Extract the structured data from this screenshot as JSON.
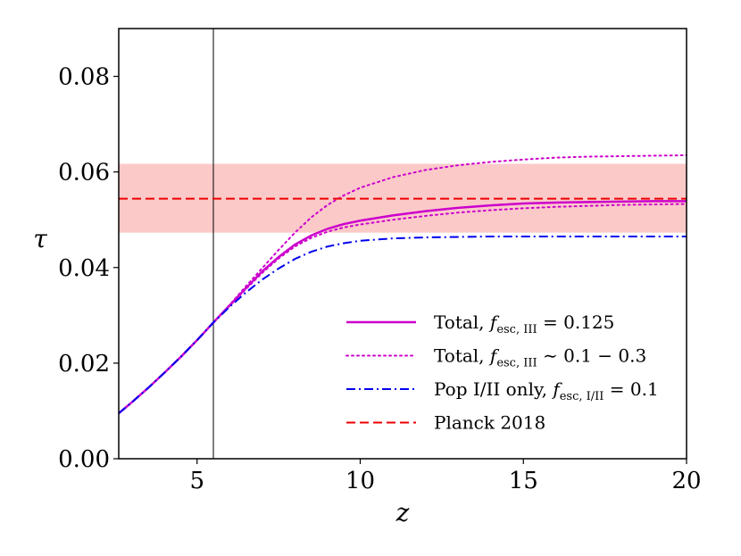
{
  "chart_data": {
    "type": "line",
    "title": "",
    "xlabel": "z",
    "ylabel": "τ",
    "xlim": [
      2.6,
      20
    ],
    "ylim": [
      0.0,
      0.09
    ],
    "xticks": [
      5,
      10,
      15,
      20
    ],
    "xtick_labels": [
      "5",
      "10",
      "15",
      "20"
    ],
    "yticks": [
      0.0,
      0.02,
      0.04,
      0.06,
      0.08
    ],
    "ytick_labels": [
      "0.00",
      "0.02",
      "0.04",
      "0.06",
      "0.08"
    ],
    "vline_x": 5.5,
    "grid": false,
    "legend_position": "lower-right",
    "band": {
      "name": "Planck 2018 1σ range",
      "y_low": 0.0473,
      "y_high": 0.0617,
      "color": "#fcc9c9"
    },
    "series": [
      {
        "name": "Total, f_esc,III = 0.125",
        "style": "solid",
        "color": "#cc00cc",
        "x": [
          2.6,
          3,
          3.5,
          4,
          4.5,
          5,
          5.5,
          6,
          6.5,
          7,
          7.5,
          8,
          8.5,
          9,
          9.5,
          10,
          11,
          12,
          13,
          14,
          15,
          16,
          17,
          18,
          19,
          20
        ],
        "y": [
          0.0095,
          0.0118,
          0.0148,
          0.018,
          0.0213,
          0.0248,
          0.0285,
          0.0321,
          0.0357,
          0.0392,
          0.0422,
          0.0448,
          0.0467,
          0.0481,
          0.0491,
          0.0498,
          0.0509,
          0.0518,
          0.0525,
          0.053,
          0.0534,
          0.0536,
          0.0537,
          0.0538,
          0.0539,
          0.0539
        ]
      },
      {
        "name": "Total, f_esc,III ~ 0.1 − 0.3 (upper)",
        "style": "dotted",
        "color": "#cc00cc",
        "x": [
          5.5,
          6,
          6.5,
          7,
          7.5,
          8,
          8.5,
          9,
          9.5,
          10,
          11,
          12,
          13,
          14,
          15,
          16,
          17,
          18,
          19,
          20
        ],
        "y": [
          0.0285,
          0.0322,
          0.0361,
          0.0399,
          0.0437,
          0.0473,
          0.0505,
          0.0531,
          0.0551,
          0.0567,
          0.0589,
          0.0604,
          0.0614,
          0.0621,
          0.0626,
          0.063,
          0.0632,
          0.0633,
          0.0634,
          0.0635
        ]
      },
      {
        "name": "Total, f_esc,III ~ 0.1 − 0.3 (lower)",
        "style": "dotted",
        "color": "#cc00cc",
        "x": [
          5.5,
          6,
          6.5,
          7,
          7.5,
          8,
          8.5,
          9,
          9.5,
          10,
          11,
          12,
          13,
          14,
          15,
          16,
          17,
          18,
          19,
          20
        ],
        "y": [
          0.0285,
          0.032,
          0.0355,
          0.0389,
          0.0419,
          0.0444,
          0.0462,
          0.0475,
          0.0484,
          0.049,
          0.05,
          0.0508,
          0.0515,
          0.052,
          0.0524,
          0.0527,
          0.0529,
          0.0531,
          0.0532,
          0.0533
        ]
      },
      {
        "name": "Pop I/II only, f_esc,I/II = 0.1",
        "style": "dashdot",
        "color": "#0000ee",
        "x": [
          2.6,
          3,
          3.5,
          4,
          4.5,
          5,
          5.5,
          6,
          6.5,
          7,
          7.5,
          8,
          8.5,
          9,
          9.5,
          10,
          11,
          12,
          13,
          14,
          15,
          16,
          17,
          18,
          19,
          20
        ],
        "y": [
          0.0095,
          0.0118,
          0.0148,
          0.018,
          0.0213,
          0.0248,
          0.0285,
          0.0318,
          0.0348,
          0.0375,
          0.0398,
          0.0418,
          0.0433,
          0.0444,
          0.0451,
          0.0456,
          0.0461,
          0.0463,
          0.0464,
          0.0465,
          0.0465,
          0.0465,
          0.0465,
          0.0465,
          0.0465,
          0.0465
        ]
      },
      {
        "name": "Planck 2018",
        "style": "dashed",
        "color": "#ee0000",
        "x": [
          2.6,
          20
        ],
        "y": [
          0.0544,
          0.0544
        ]
      }
    ],
    "legend": [
      {
        "text_pre": "Total, ",
        "f": "f",
        "sub": "esc, III",
        "text_post": " = 0.125",
        "style": "solid",
        "color": "#cc00cc"
      },
      {
        "text_pre": "Total, ",
        "f": "f",
        "sub": "esc, III",
        "text_post": " ∼ 0.1 − 0.3",
        "style": "dotted",
        "color": "#cc00cc"
      },
      {
        "text_pre": "Pop I/II only, ",
        "f": "f",
        "sub": "esc, I/II",
        "text_post": " = 0.1",
        "style": "dashdot",
        "color": "#0000ee"
      },
      {
        "text_pre": "Planck 2018",
        "f": "",
        "sub": "",
        "text_post": "",
        "style": "dashed",
        "color": "#ee0000"
      }
    ]
  }
}
